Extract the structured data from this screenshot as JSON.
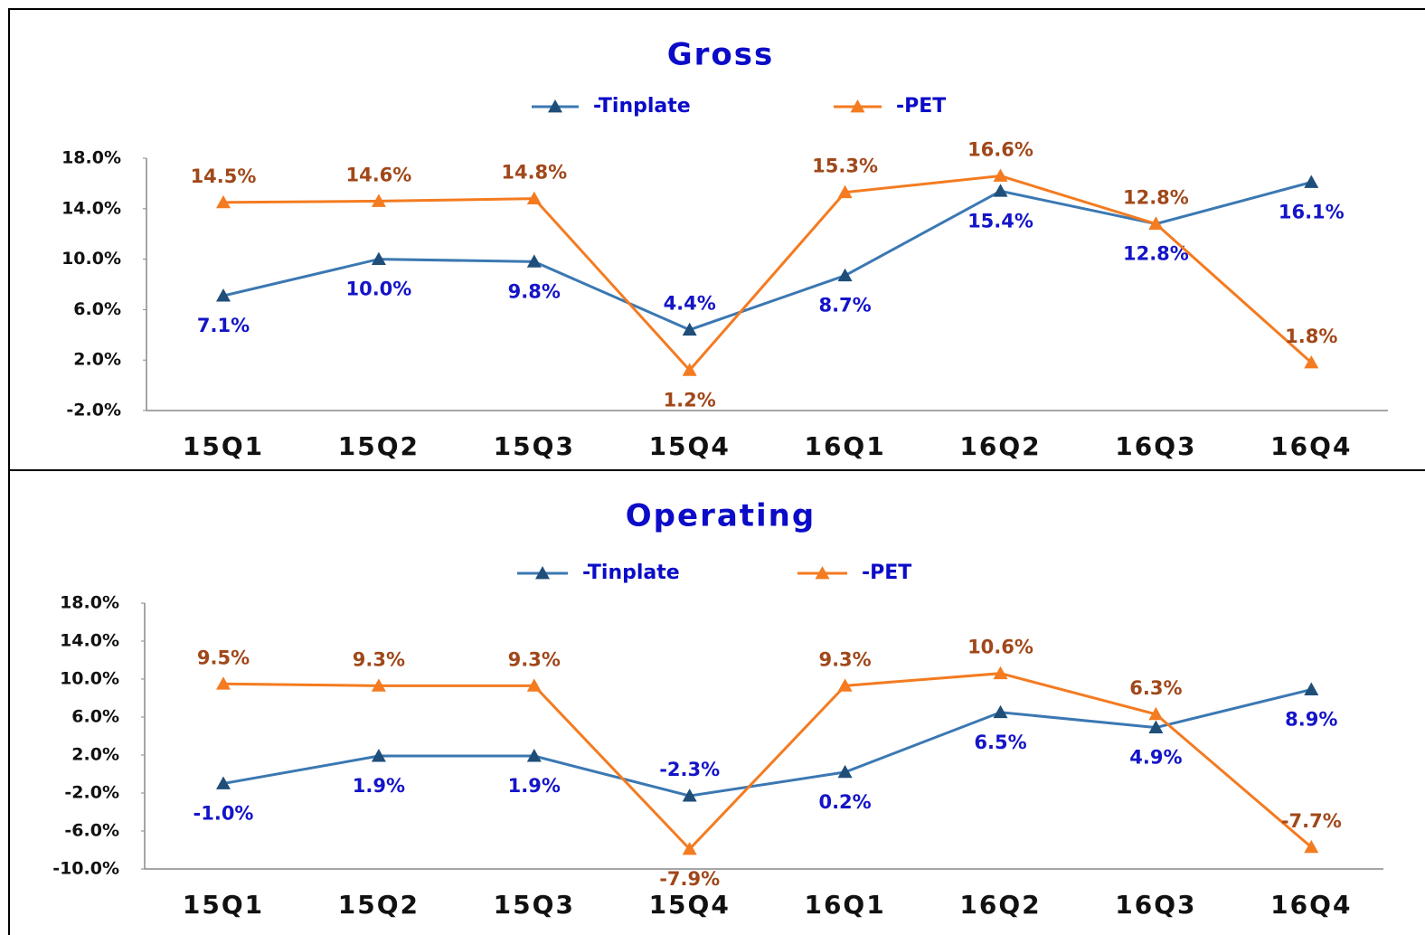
{
  "chart_data": [
    {
      "type": "line",
      "title": "Gross",
      "categories": [
        "15Q1",
        "15Q2",
        "15Q3",
        "15Q4",
        "16Q1",
        "16Q2",
        "16Q3",
        "16Q4"
      ],
      "series": [
        {
          "name": "-Tinplate",
          "color": "#3b78b2",
          "values": [
            7.1,
            10.0,
            9.8,
            4.4,
            8.7,
            15.4,
            12.8,
            16.1
          ],
          "value_labels": [
            "7.1%",
            "10.0%",
            "9.8%",
            "4.4%",
            "8.7%",
            "15.4%",
            "12.8%",
            "16.1%"
          ]
        },
        {
          "name": "-PET",
          "color": "#f47b20",
          "values": [
            14.5,
            14.6,
            14.8,
            1.2,
            15.3,
            16.6,
            12.8,
            1.8
          ],
          "value_labels": [
            "14.5%",
            "14.6%",
            "14.8%",
            "1.2%",
            "15.3%",
            "16.6%",
            "12.8%",
            "1.8%"
          ]
        }
      ],
      "ylim": [
        -2,
        18
      ],
      "yticks": [
        {
          "value": -2,
          "label": "-2.0%"
        },
        {
          "value": 2,
          "label": "2.0%"
        },
        {
          "value": 6,
          "label": "6.0%"
        },
        {
          "value": 10,
          "label": "10.0%"
        },
        {
          "value": 14,
          "label": "14.0%"
        },
        {
          "value": 18,
          "label": "18.0%"
        }
      ],
      "legend": "top"
    },
    {
      "type": "line",
      "title": "Operating",
      "categories": [
        "15Q1",
        "15Q2",
        "15Q3",
        "15Q4",
        "16Q1",
        "16Q2",
        "16Q3",
        "16Q4"
      ],
      "series": [
        {
          "name": "-Tinplate",
          "color": "#3b78b2",
          "values": [
            -1.0,
            1.9,
            1.9,
            -2.3,
            0.2,
            6.5,
            4.9,
            8.9
          ],
          "value_labels": [
            "-1.0%",
            "1.9%",
            "1.9%",
            "-2.3%",
            "0.2%",
            "6.5%",
            "4.9%",
            "8.9%"
          ]
        },
        {
          "name": "-PET",
          "color": "#f47b20",
          "values": [
            9.5,
            9.3,
            9.3,
            -7.9,
            9.3,
            10.6,
            6.3,
            -7.7
          ],
          "value_labels": [
            "9.5%",
            "9.3%",
            "9.3%",
            "-7.9%",
            "9.3%",
            "10.6%",
            "6.3%",
            "-7.7%"
          ]
        }
      ],
      "ylim": [
        -10,
        18
      ],
      "yticks": [
        {
          "value": -10,
          "label": "-10.0%"
        },
        {
          "value": -6,
          "label": "-6.0%"
        },
        {
          "value": -2,
          "label": "-2.0%"
        },
        {
          "value": 2,
          "label": "2.0%"
        },
        {
          "value": 6,
          "label": "6.0%"
        },
        {
          "value": 10,
          "label": "10.0%"
        },
        {
          "value": 14,
          "label": "14.0%"
        },
        {
          "value": 18,
          "label": "18.0%"
        }
      ],
      "legend": "top"
    }
  ]
}
